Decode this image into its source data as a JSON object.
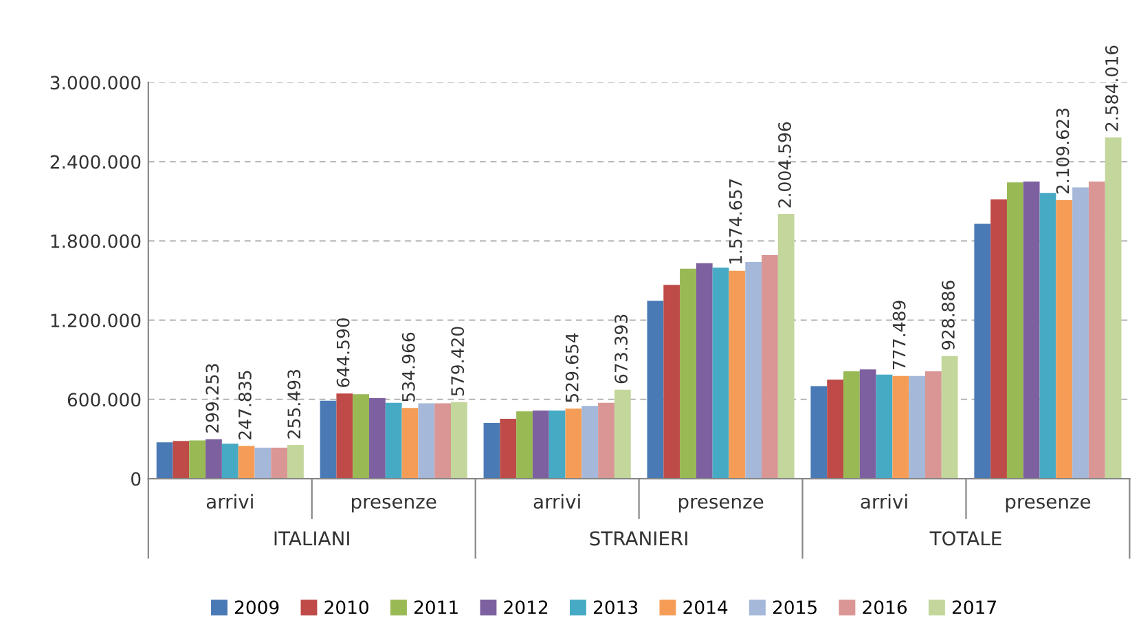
{
  "chart_data": {
    "type": "bar",
    "categories": [
      "arrivi",
      "presenze",
      "arrivi",
      "presenze",
      "arrivi",
      "presenze"
    ],
    "annotations": [
      "ITALIANI",
      "STRANIERI",
      "TOTALE"
    ],
    "series": [
      {
        "name": "2009",
        "color": "#4a7ab5",
        "values": [
          275000,
          590000,
          422000,
          1346000,
          701000,
          1929000
        ]
      },
      {
        "name": "2010",
        "color": "#be4b48",
        "values": [
          285000,
          644590,
          453000,
          1468000,
          750000,
          2114000
        ],
        "value_labels": [
          null,
          "644.590",
          null,
          null,
          null,
          null
        ]
      },
      {
        "name": "2011",
        "color": "#98b954",
        "values": [
          290000,
          640000,
          509000,
          1590000,
          813000,
          2243000
        ]
      },
      {
        "name": "2012",
        "color": "#7d60a0",
        "values": [
          299253,
          610000,
          516000,
          1632000,
          827000,
          2250000
        ],
        "value_labels": [
          "299.253",
          null,
          null,
          null,
          null,
          null
        ]
      },
      {
        "name": "2013",
        "color": "#46aac5",
        "values": [
          265000,
          575000,
          516000,
          1597000,
          788000,
          2162000
        ]
      },
      {
        "name": "2014",
        "color": "#f59d56",
        "values": [
          247835,
          534966,
          529654,
          1574657,
          777489,
          2109623
        ],
        "value_labels": [
          "247.835",
          "534.966",
          "529.654",
          "1.574.657",
          "777.489",
          "2.109.623"
        ]
      },
      {
        "name": "2015",
        "color": "#a5b8d9",
        "values": [
          235000,
          570000,
          551000,
          1640000,
          778000,
          2205000
        ]
      },
      {
        "name": "2016",
        "color": "#d99694",
        "values": [
          235000,
          570000,
          575000,
          1692000,
          813000,
          2250000
        ]
      },
      {
        "name": "2017",
        "color": "#c3d69b",
        "values": [
          255493,
          579420,
          673393,
          2004596,
          928886,
          2584016
        ],
        "value_labels": [
          "255.493",
          "579.420",
          "673.393",
          "2.004.596",
          "928.886",
          "2.584.016"
        ]
      }
    ],
    "ylim": [
      0,
      3000000
    ],
    "yticks": [
      0,
      {
        "value": 600000,
        "label": "600.000"
      },
      {
        "value": 1200000,
        "label": "1.200.000"
      },
      {
        "value": 1800000,
        "label": "1.800.000"
      },
      {
        "value": 2400000,
        "label": "2.400.000"
      },
      {
        "value": 3000000,
        "label": "3.000.000"
      }
    ],
    "grid": "y",
    "legend": "bottom"
  }
}
